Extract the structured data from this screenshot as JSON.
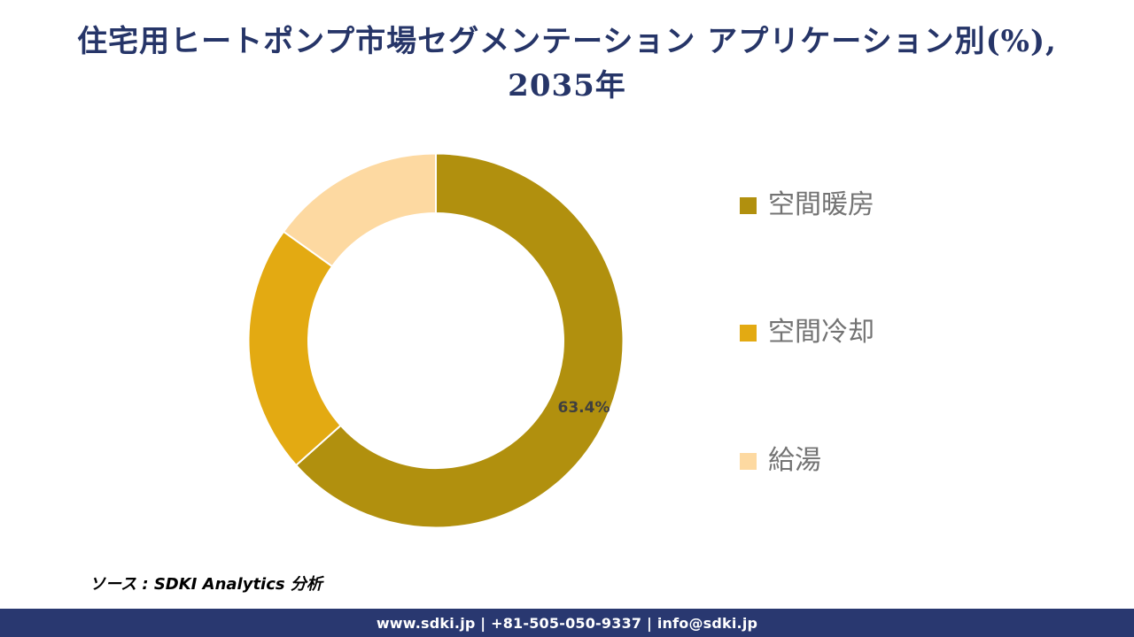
{
  "header": {
    "title_lines": [
      "住宅用ヒートポンプ市場セグメンテーション アプリケーション別(%),",
      "2035年"
    ],
    "title_color": "#263568"
  },
  "chart_data": {
    "type": "pie",
    "subtype": "donut",
    "title": "住宅用ヒートポンプ市場セグメンテーション アプリケーション別(%), 2035年",
    "categories": [
      "空間暖房",
      "空間冷却",
      "給湯"
    ],
    "values": [
      63.4,
      21.5,
      15.1
    ],
    "colors": [
      "#B1900E",
      "#E3AA12",
      "#FDD9A1"
    ],
    "data_labels": [
      "63.4%",
      "",
      ""
    ],
    "data_label_color": "#3F3F3F",
    "segment_border_color": "#FFFFFF",
    "start_angle_deg": 0,
    "direction": "clockwise",
    "legend_position": "right"
  },
  "legend": {
    "text_color": "#737373",
    "items": [
      {
        "label": "空間暖房"
      },
      {
        "label": "空間冷却"
      },
      {
        "label": "給湯"
      }
    ]
  },
  "source": {
    "text": "ソース : SDKI Analytics 分析"
  },
  "footer": {
    "text": "www.sdki.jp | +81-505-050-9337 | info@sdki.jp",
    "bg_color": "#293870"
  }
}
